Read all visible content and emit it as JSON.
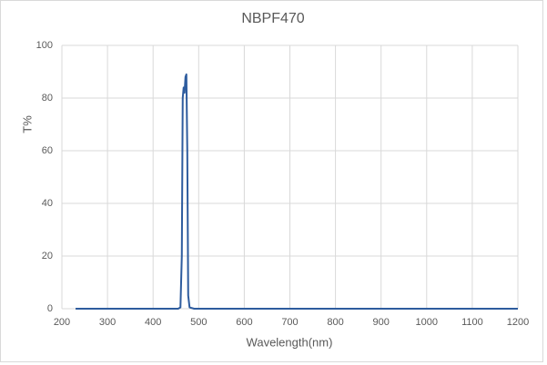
{
  "chart_data": {
    "type": "line",
    "title": "NBPF470",
    "x_label": "Wavelength(nm)",
    "y_label": "T%",
    "x": [
      230,
      455,
      460,
      463,
      465,
      467,
      469,
      471,
      473,
      475,
      477,
      480,
      490,
      1200
    ],
    "series": [
      {
        "name": "NBPF470",
        "color": "#2e5c9e",
        "values": [
          0,
          0,
          0.5,
          20,
          80,
          84,
          82,
          88,
          89,
          60,
          5,
          0.5,
          0,
          0
        ]
      }
    ],
    "xlim": [
      200,
      1200
    ],
    "xticks": [
      200,
      300,
      400,
      500,
      600,
      700,
      800,
      900,
      1000,
      1100,
      1200
    ],
    "ylim": [
      0,
      100
    ],
    "yticks": [
      0,
      20,
      40,
      60,
      80,
      100
    ],
    "grid": true
  }
}
